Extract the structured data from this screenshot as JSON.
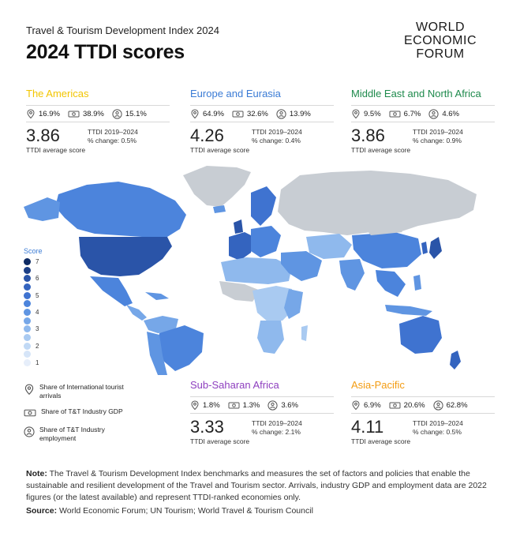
{
  "header": {
    "subtitle": "Travel & Tourism Development Index 2024",
    "title": "2024 TTDI scores"
  },
  "logo": {
    "lines": [
      "WORLD",
      "ECONOMIC",
      "FORUM"
    ]
  },
  "regions": [
    {
      "name": "The Americas",
      "color": "#f2c500",
      "arrivals": "16.9%",
      "gdp": "38.9%",
      "employment": "15.1%",
      "score": "3.86",
      "score_label": "TTDI average score",
      "change_label": "TTDI 2019–2024",
      "change": "% change: 0.5%"
    },
    {
      "name": "Europe and Eurasia",
      "color": "#3a7bd5",
      "arrivals": "64.9%",
      "gdp": "32.6%",
      "employment": "13.9%",
      "score": "4.26",
      "score_label": "TTDI average score",
      "change_label": "TTDI 2019–2024",
      "change": "% change: 0.4%"
    },
    {
      "name": "Middle East and North Africa",
      "color": "#1e8a4c",
      "arrivals": "9.5%",
      "gdp": "6.7%",
      "employment": "4.6%",
      "score": "3.86",
      "score_label": "TTDI average score",
      "change_label": "TTDI 2019–2024",
      "change": "% change: 0.9%"
    },
    {
      "name": "Sub-Saharan Africa",
      "color": "#8e3fbf",
      "arrivals": "1.8%",
      "gdp": "1.3%",
      "employment": "3.6%",
      "score": "3.33",
      "score_label": "TTDI average score",
      "change_label": "TTDI 2019–2024",
      "change": "% change: 2.1%"
    },
    {
      "name": "Asia-Pacific",
      "color": "#f39c12",
      "arrivals": "6.9%",
      "gdp": "20.6%",
      "employment": "62.8%",
      "score": "4.11",
      "score_label": "TTDI average score",
      "change_label": "TTDI 2019–2024",
      "change": "% change: 0.5%"
    }
  ],
  "legend": {
    "title": "Score",
    "items": [
      {
        "label": "7",
        "color": "#0d2a63"
      },
      {
        "label": "",
        "color": "#1c3f86"
      },
      {
        "label": "6",
        "color": "#2a54a8"
      },
      {
        "label": "",
        "color": "#3464bf"
      },
      {
        "label": "5",
        "color": "#3f73d0"
      },
      {
        "label": "",
        "color": "#4c84dc"
      },
      {
        "label": "4",
        "color": "#5f95e2"
      },
      {
        "label": "",
        "color": "#76a7e8"
      },
      {
        "label": "3",
        "color": "#8fb9ed"
      },
      {
        "label": "",
        "color": "#a9caf1"
      },
      {
        "label": "2",
        "color": "#c1d9f5"
      },
      {
        "label": "",
        "color": "#d6e5f8"
      },
      {
        "label": "1",
        "color": "#e6eefa"
      }
    ]
  },
  "map": {
    "no_data_color": "#c8cdd3",
    "mid_color": "#4c84dc",
    "dark_color": "#2a54a8",
    "light_color": "#8fb9ed"
  },
  "keys": [
    {
      "icon": "location-pin-icon",
      "text": "Share of International tourist arrivals"
    },
    {
      "icon": "money-icon",
      "text": "Share of T&T Industry GDP"
    },
    {
      "icon": "people-icon",
      "text": "Share of T&T Industry employment"
    }
  ],
  "note": {
    "label": "Note:",
    "text": " The Travel & Tourism Development Index benchmarks and measures the set of factors and policies that enable the sustainable and resilient development of the Travel and Tourism sector. Arrivals, industry GDP and employment data are 2022 figures (or the latest available) and represent TTDI-ranked economies only."
  },
  "source": {
    "label": "Source:",
    "text": " World Economic Forum; UN Tourism; World Travel & Tourism Council"
  }
}
